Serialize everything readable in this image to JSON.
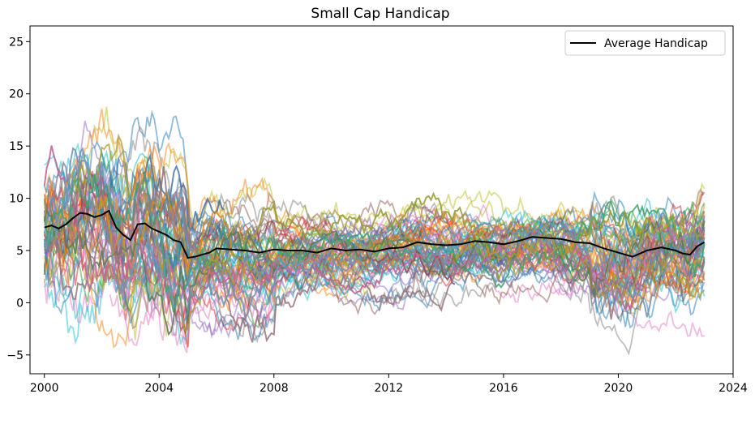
{
  "chart_data": {
    "type": "line",
    "title": "Small Cap Handicap",
    "xlabel": "",
    "ylabel": "",
    "xlim": [
      1999.5,
      2024.0
    ],
    "ylim": [
      -6.8,
      26.5
    ],
    "x_ticks": [
      2000,
      2004,
      2008,
      2012,
      2016,
      2020,
      2024
    ],
    "y_ticks": [
      -5,
      0,
      5,
      10,
      15,
      20,
      25
    ],
    "y_tick_labels": [
      "−5",
      "0",
      "5",
      "10",
      "15",
      "20",
      "25"
    ],
    "grid": false,
    "legend": {
      "placement": "top-right",
      "entries": [
        "Average Handicap"
      ]
    },
    "average_series": {
      "name": "Average Handicap",
      "color": "#000000",
      "x": [
        2000.0,
        2000.25,
        2000.5,
        2000.75,
        2001.0,
        2001.25,
        2001.5,
        2001.75,
        2002.0,
        2002.25,
        2002.5,
        2002.75,
        2003.0,
        2003.25,
        2003.5,
        2003.75,
        2004.0,
        2004.25,
        2004.5,
        2004.75,
        2005.0,
        2005.25,
        2005.5,
        2005.75,
        2006.0,
        2006.5,
        2007.0,
        2007.5,
        2008.0,
        2008.5,
        2009.0,
        2009.5,
        2010.0,
        2010.5,
        2011.0,
        2011.5,
        2012.0,
        2012.5,
        2013.0,
        2013.5,
        2014.0,
        2014.5,
        2015.0,
        2015.5,
        2016.0,
        2016.5,
        2017.0,
        2017.5,
        2018.0,
        2018.5,
        2019.0,
        2019.5,
        2020.0,
        2020.5,
        2021.0,
        2021.5,
        2022.0,
        2022.25,
        2022.5,
        2022.75,
        2023.0
      ],
      "y": [
        7.2,
        7.4,
        7.1,
        7.5,
        8.1,
        8.6,
        8.5,
        8.2,
        8.4,
        8.8,
        7.2,
        6.5,
        6.0,
        7.5,
        7.6,
        7.1,
        6.8,
        6.5,
        6.0,
        5.8,
        4.3,
        4.4,
        4.6,
        4.8,
        5.2,
        5.1,
        5.0,
        4.8,
        5.1,
        5.0,
        5.0,
        4.8,
        5.2,
        5.0,
        5.1,
        4.9,
        5.2,
        5.3,
        5.8,
        5.6,
        5.5,
        5.6,
        5.9,
        5.8,
        5.6,
        5.9,
        6.3,
        6.2,
        6.1,
        5.8,
        5.7,
        5.2,
        4.8,
        4.4,
        5.0,
        5.3,
        5.0,
        4.7,
        4.6,
        5.4,
        5.8
      ]
    },
    "background_series": {
      "count": 110,
      "alpha": 0.5,
      "palette": [
        "#1f77b4",
        "#ff7f0e",
        "#2ca02c",
        "#d62728",
        "#9467bd",
        "#8c564b",
        "#e377c2",
        "#7f7f7f",
        "#bcbd22",
        "#17becf"
      ]
    }
  }
}
